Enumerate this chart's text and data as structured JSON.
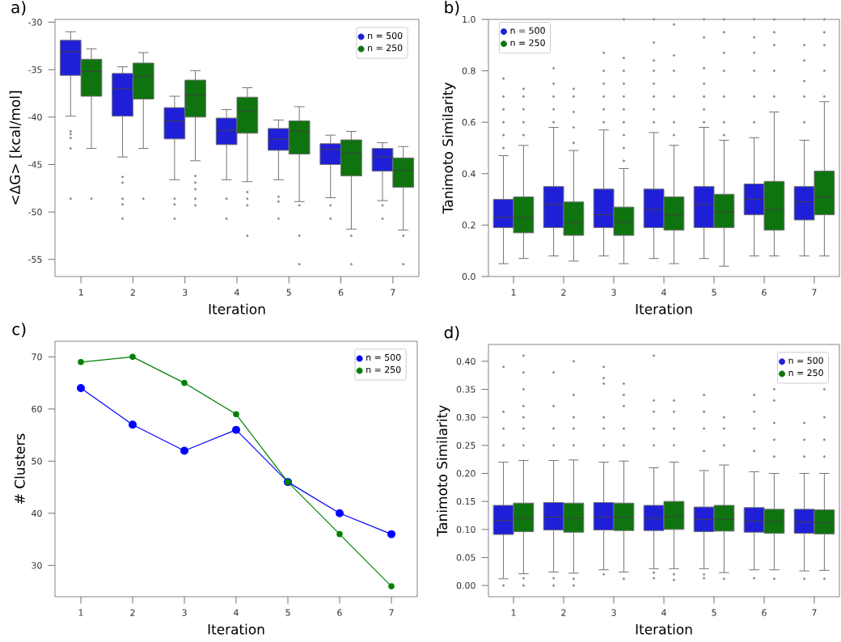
{
  "chart_data": [
    {
      "type": "box",
      "title": "a)",
      "xlabel": "Iteration",
      "ylabel": "<ΔG> [kcal/mol]",
      "categories": [
        "1",
        "2",
        "3",
        "4",
        "5",
        "6",
        "7"
      ],
      "ylim": [
        -56.8,
        -29.7
      ],
      "yticks": [
        -55,
        -50,
        -45,
        -40,
        -35,
        -30
      ],
      "legend": "top right",
      "series": [
        {
          "name": "n = 500",
          "color": "#1f1fd8",
          "boxes": [
            {
              "low": -39.9,
              "q1": -35.6,
              "median": -33.1,
              "q3": -31.9,
              "high": -31.0,
              "outliers": [
                -41.5,
                -41.8,
                -42.2,
                -43.3,
                -48.6
              ]
            },
            {
              "low": -44.2,
              "q1": -39.9,
              "median": -37.0,
              "q3": -35.4,
              "high": -34.7,
              "outliers": [
                -46.3,
                -46.9,
                -48.6,
                -49.2,
                -50.7
              ]
            },
            {
              "low": -46.6,
              "q1": -42.3,
              "median": -40.4,
              "q3": -39.0,
              "high": -37.8,
              "outliers": [
                -48.6,
                -49.2,
                -50.7
              ]
            },
            {
              "low": -46.6,
              "q1": -42.9,
              "median": -41.4,
              "q3": -40.1,
              "high": -39.2,
              "outliers": [
                -48.6,
                -50.7
              ]
            },
            {
              "low": -46.6,
              "q1": -43.5,
              "median": -42.3,
              "q3": -41.2,
              "high": -40.3,
              "outliers": [
                -48.4,
                -48.9,
                -50.7
              ]
            },
            {
              "low": -48.5,
              "q1": -45.0,
              "median": -43.4,
              "q3": -42.8,
              "high": -41.9,
              "outliers": [
                -49.3,
                -50.7
              ]
            },
            {
              "low": -48.8,
              "q1": -45.7,
              "median": -44.2,
              "q3": -43.3,
              "high": -42.7,
              "outliers": [
                -49.3,
                -50.7
              ]
            }
          ]
        },
        {
          "name": "n = 250",
          "color": "#0f730f",
          "boxes": [
            {
              "low": -43.3,
              "q1": -37.8,
              "median": -35.2,
              "q3": -33.9,
              "high": -32.8,
              "outliers": [
                -48.6
              ]
            },
            {
              "low": -43.3,
              "q1": -38.1,
              "median": -35.7,
              "q3": -34.3,
              "high": -33.2,
              "outliers": [
                -48.6
              ]
            },
            {
              "low": -44.6,
              "q1": -40.0,
              "median": -37.7,
              "q3": -36.1,
              "high": -35.1,
              "outliers": [
                -46.2,
                -46.9,
                -47.6,
                -48.6,
                -49.3
              ]
            },
            {
              "low": -46.8,
              "q1": -41.7,
              "median": -39.4,
              "q3": -37.9,
              "high": -36.9,
              "outliers": [
                -47.9,
                -48.6,
                -49.3,
                -52.5
              ]
            },
            {
              "low": -48.9,
              "q1": -43.9,
              "median": -41.5,
              "q3": -40.4,
              "high": -38.9,
              "outliers": [
                -49.3,
                -52.5,
                -55.5
              ]
            },
            {
              "low": -51.8,
              "q1": -46.2,
              "median": -43.8,
              "q3": -42.4,
              "high": -41.5,
              "outliers": [
                -52.5,
                -55.5
              ]
            },
            {
              "low": -51.9,
              "q1": -47.4,
              "median": -45.6,
              "q3": -44.3,
              "high": -43.1,
              "outliers": [
                -52.5,
                -55.5
              ]
            }
          ]
        }
      ]
    },
    {
      "type": "box",
      "title": "b)",
      "xlabel": "Iteration",
      "ylabel": "Tanimoto Similarity",
      "categories": [
        "1",
        "2",
        "3",
        "4",
        "5",
        "6",
        "7"
      ],
      "ylim": [
        0,
        1.0
      ],
      "yticks": [
        {
          "value": 0,
          "label": "0.0"
        },
        {
          "value": 0.2,
          "label": "0.2"
        },
        {
          "value": 0.4,
          "label": "0.4"
        },
        {
          "value": 0.6,
          "label": "0.6"
        },
        {
          "value": 0.8,
          "label": "0.8"
        },
        {
          "value": 1.0,
          "label": "1.0"
        }
      ],
      "legend": "top left",
      "series": [
        {
          "name": "n = 500",
          "color": "#1f1fd8",
          "boxes": [
            {
              "low": 0.05,
              "q1": 0.19,
              "median": 0.23,
              "q3": 0.3,
              "high": 0.47,
              "outliers": [
                0.5,
                0.55,
                0.6,
                0.65,
                0.7,
                0.77
              ]
            },
            {
              "low": 0.08,
              "q1": 0.19,
              "median": 0.28,
              "q3": 0.35,
              "high": 0.58,
              "outliers": [
                0.6,
                0.65,
                0.7,
                0.75,
                0.81
              ]
            },
            {
              "low": 0.08,
              "q1": 0.19,
              "median": 0.24,
              "q3": 0.34,
              "high": 0.57,
              "outliers": [
                0.6,
                0.65,
                0.7,
                0.75,
                0.8,
                0.87
              ]
            },
            {
              "low": 0.07,
              "q1": 0.19,
              "median": 0.26,
              "q3": 0.34,
              "high": 0.56,
              "outliers": [
                0.6,
                0.65,
                0.7,
                0.75,
                0.8,
                0.84,
                0.91,
                1.0
              ]
            },
            {
              "low": 0.07,
              "q1": 0.19,
              "median": 0.28,
              "q3": 0.35,
              "high": 0.58,
              "outliers": [
                0.6,
                0.65,
                0.7,
                0.75,
                0.81,
                0.93,
                1.0
              ]
            },
            {
              "low": 0.08,
              "q1": 0.24,
              "median": 0.3,
              "q3": 0.36,
              "high": 0.54,
              "outliers": [
                0.6,
                0.7,
                0.8,
                0.87,
                0.93,
                1.0
              ]
            },
            {
              "low": 0.08,
              "q1": 0.22,
              "median": 0.29,
              "q3": 0.35,
              "high": 0.53,
              "outliers": [
                0.6,
                0.7,
                0.76,
                0.84,
                0.9,
                1.0
              ]
            }
          ]
        },
        {
          "name": "n = 250",
          "color": "#0f730f",
          "boxes": [
            {
              "low": 0.07,
              "q1": 0.17,
              "median": 0.23,
              "q3": 0.31,
              "high": 0.51,
              "outliers": [
                0.55,
                0.6,
                0.65,
                0.7,
                0.73
              ]
            },
            {
              "low": 0.06,
              "q1": 0.16,
              "median": 0.21,
              "q3": 0.29,
              "high": 0.49,
              "outliers": [
                0.52,
                0.58,
                0.64,
                0.7,
                0.73
              ]
            },
            {
              "low": 0.05,
              "q1": 0.16,
              "median": 0.21,
              "q3": 0.27,
              "high": 0.42,
              "outliers": [
                0.45,
                0.5,
                0.55,
                0.6,
                0.65,
                0.7,
                0.75,
                0.8,
                0.85,
                1.0
              ]
            },
            {
              "low": 0.05,
              "q1": 0.18,
              "median": 0.24,
              "q3": 0.31,
              "high": 0.51,
              "outliers": [
                0.55,
                0.6,
                0.7,
                0.8,
                0.86,
                0.98
              ]
            },
            {
              "low": 0.04,
              "q1": 0.19,
              "median": 0.25,
              "q3": 0.32,
              "high": 0.53,
              "outliers": [
                0.55,
                0.6,
                0.7,
                0.8,
                0.87,
                0.95,
                1.0
              ]
            },
            {
              "low": 0.08,
              "q1": 0.18,
              "median": 0.26,
              "q3": 0.37,
              "high": 0.64,
              "outliers": [
                0.7,
                0.8,
                0.9,
                0.95,
                1.0
              ]
            },
            {
              "low": 0.08,
              "q1": 0.24,
              "median": 0.31,
              "q3": 0.41,
              "high": 0.68,
              "outliers": [
                0.7,
                0.8,
                0.9,
                0.95,
                1.0
              ]
            }
          ]
        }
      ]
    },
    {
      "type": "line",
      "title": "c)",
      "xlabel": "Iteration",
      "ylabel": "# Clusters",
      "categories": [
        "1",
        "2",
        "3",
        "4",
        "5",
        "6",
        "7"
      ],
      "ylim": [
        24,
        73
      ],
      "yticks": [
        30,
        40,
        50,
        60,
        70
      ],
      "legend": "top right",
      "marker": "circle",
      "line_style": "solid",
      "series": [
        {
          "name": "n = 500",
          "color": "#0000ff",
          "values": [
            64,
            57,
            52,
            56,
            46,
            40,
            36
          ]
        },
        {
          "name": "n = 250",
          "color": "#008000",
          "values": [
            69,
            70,
            65,
            59,
            46,
            36,
            26
          ]
        }
      ]
    },
    {
      "type": "box",
      "title": "d)",
      "xlabel": "Iteration",
      "ylabel": "Tanimoto Similarity",
      "categories": [
        "1",
        "2",
        "3",
        "4",
        "5",
        "6",
        "7"
      ],
      "ylim": [
        -0.02,
        0.43
      ],
      "yticks": [
        {
          "value": 0,
          "label": "0.00"
        },
        {
          "value": 0.05,
          "label": "0.05"
        },
        {
          "value": 0.1,
          "label": "0.10"
        },
        {
          "value": 0.15,
          "label": "0.15"
        },
        {
          "value": 0.2,
          "label": "0.20"
        },
        {
          "value": 0.25,
          "label": "0.25"
        },
        {
          "value": 0.3,
          "label": "0.30"
        },
        {
          "value": 0.35,
          "label": "0.35"
        },
        {
          "value": 0.4,
          "label": "0.40"
        }
      ],
      "legend": "top right",
      "series": [
        {
          "name": "n = 500",
          "color": "#1f1fd8",
          "boxes": [
            {
              "low": 0.012,
              "q1": 0.091,
              "median": 0.116,
              "q3": 0.143,
              "high": 0.22,
              "outliers": [
                0.0,
                0.25,
                0.28,
                0.31,
                0.39
              ]
            },
            {
              "low": 0.024,
              "q1": 0.099,
              "median": 0.122,
              "q3": 0.148,
              "high": 0.223,
              "outliers": [
                0.0,
                0.013,
                0.25,
                0.28,
                0.32,
                0.38
              ]
            },
            {
              "low": 0.028,
              "q1": 0.099,
              "median": 0.122,
              "q3": 0.148,
              "high": 0.22,
              "outliers": [
                0.02,
                0.25,
                0.28,
                0.3,
                0.36,
                0.37,
                0.39
              ]
            },
            {
              "low": 0.03,
              "q1": 0.098,
              "median": 0.12,
              "q3": 0.143,
              "high": 0.21,
              "outliers": [
                0.013,
                0.023,
                0.25,
                0.28,
                0.31,
                0.33,
                0.41
              ]
            },
            {
              "low": 0.03,
              "q1": 0.096,
              "median": 0.118,
              "q3": 0.14,
              "high": 0.205,
              "outliers": [
                0.013,
                0.02,
                0.24,
                0.28,
                0.31,
                0.34
              ]
            },
            {
              "low": 0.028,
              "q1": 0.095,
              "median": 0.115,
              "q3": 0.139,
              "high": 0.203,
              "outliers": [
                0.013,
                0.24,
                0.28,
                0.31,
                0.34
              ]
            },
            {
              "low": 0.026,
              "q1": 0.093,
              "median": 0.113,
              "q3": 0.136,
              "high": 0.2,
              "outliers": [
                0.012,
                0.23,
                0.26,
                0.29
              ]
            }
          ]
        },
        {
          "name": "n = 250",
          "color": "#0f730f",
          "boxes": [
            {
              "low": 0.021,
              "q1": 0.096,
              "median": 0.12,
              "q3": 0.147,
              "high": 0.223,
              "outliers": [
                0.0,
                0.013,
                0.25,
                0.28,
                0.3,
                0.32,
                0.35,
                0.38,
                0.41
              ]
            },
            {
              "low": 0.022,
              "q1": 0.095,
              "median": 0.12,
              "q3": 0.147,
              "high": 0.224,
              "outliers": [
                0.0,
                0.012,
                0.25,
                0.28,
                0.3,
                0.34,
                0.4
              ]
            },
            {
              "low": 0.024,
              "q1": 0.098,
              "median": 0.122,
              "q3": 0.147,
              "high": 0.222,
              "outliers": [
                0.012,
                0.25,
                0.28,
                0.32,
                0.34,
                0.36
              ]
            },
            {
              "low": 0.03,
              "q1": 0.1,
              "median": 0.123,
              "q3": 0.15,
              "high": 0.22,
              "outliers": [
                0.01,
                0.02,
                0.25,
                0.28,
                0.31,
                0.33
              ]
            },
            {
              "low": 0.023,
              "q1": 0.097,
              "median": 0.118,
              "q3": 0.143,
              "high": 0.215,
              "outliers": [
                0.012,
                0.25,
                0.28,
                0.3
              ]
            },
            {
              "low": 0.028,
              "q1": 0.093,
              "median": 0.114,
              "q3": 0.136,
              "high": 0.2,
              "outliers": [
                0.012,
                0.23,
                0.26,
                0.29,
                0.33,
                0.35
              ]
            },
            {
              "low": 0.027,
              "q1": 0.092,
              "median": 0.112,
              "q3": 0.135,
              "high": 0.2,
              "outliers": [
                0.012,
                0.23,
                0.26,
                0.3,
                0.35
              ]
            }
          ]
        }
      ]
    }
  ]
}
